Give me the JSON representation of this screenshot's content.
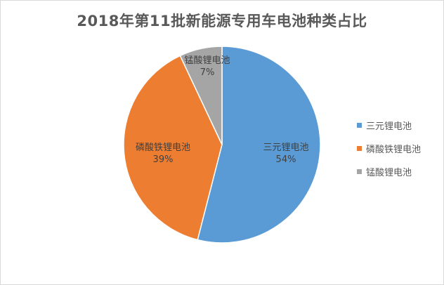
{
  "chart_data": {
    "type": "pie",
    "title": "2018年第11批新能源专用车电池种类占比",
    "categories": [
      "三元锂电池",
      "磷酸铁锂电池",
      "锰酸锂电池"
    ],
    "values": [
      54,
      39,
      7
    ],
    "value_labels": [
      "54%",
      "39%",
      "7%"
    ],
    "colors": [
      "#5B9BD5",
      "#ED7D31",
      "#A5A5A5"
    ],
    "legend_position": "right",
    "start_angle": "top",
    "direction": "clockwise"
  }
}
